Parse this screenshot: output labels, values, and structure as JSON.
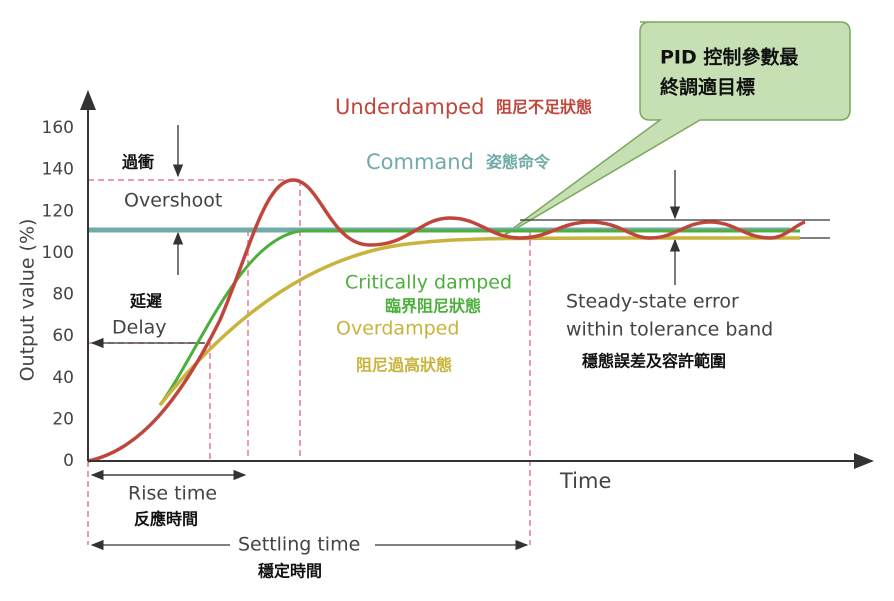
{
  "y_axis": {
    "label": "Output value (%)",
    "ticks": [
      0,
      20,
      40,
      60,
      80,
      100,
      120,
      140,
      160
    ]
  },
  "x_axis": {
    "label": "Time"
  },
  "callout": {
    "lines": [
      "PID 控制參數最",
      "終調適目標"
    ]
  },
  "curves": {
    "underdamped": {
      "name": "Underdamped",
      "name_zh": "阻尼不足狀態"
    },
    "command": {
      "name": "Command",
      "name_zh": "姿態命令"
    },
    "critically_damped": {
      "name": "Critically damped",
      "name_zh": "臨界阻尼狀態"
    },
    "overdamped": {
      "name": "Overdamped",
      "name_zh": "阻尼過高狀態"
    }
  },
  "annotations": {
    "overshoot": {
      "zh": "過衝",
      "en": "Overshoot"
    },
    "delay": {
      "zh": "延遲",
      "en": "Delay"
    },
    "steady_state": {
      "en": [
        "Steady-state error",
        "within tolerance band"
      ],
      "zh": "穩態誤差及容許範圍"
    },
    "rise_time": {
      "en": "Rise time",
      "zh": "反應時間"
    },
    "settling_time": {
      "en": "Settling time",
      "zh": "穩定時間"
    }
  }
}
